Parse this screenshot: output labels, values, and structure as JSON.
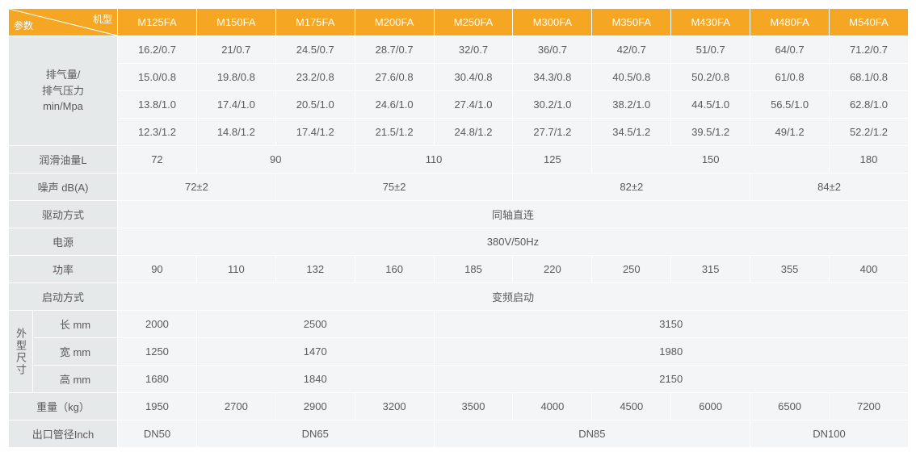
{
  "colors": {
    "header_bg": "#f5a623",
    "header_text": "#ffffff",
    "label_bg": "#e6e9ea",
    "value_bg": "#f4f5f6",
    "border": "#ffffff",
    "text": "#5a5a5a"
  },
  "header": {
    "param_label": "参数",
    "model_label": "机型",
    "models": [
      "M125FA",
      "M150FA",
      "M175FA",
      "M200FA",
      "M250FA",
      "M300FA",
      "M350FA",
      "M430FA",
      "M480FA",
      "M540FA"
    ]
  },
  "rows": {
    "exhaust_label": "排气量/\n排气压力\nmin/Mpa",
    "exhaust": [
      [
        "16.2/0.7",
        "21/0.7",
        "24.5/0.7",
        "28.7/0.7",
        "32/0.7",
        "36/0.7",
        "42/0.7",
        "51/0.7",
        "64/0.7",
        "71.2/0.7"
      ],
      [
        "15.0/0.8",
        "19.8/0.8",
        "23.2/0.8",
        "27.6/0.8",
        "30.4/0.8",
        "34.3/0.8",
        "40.5/0.8",
        "50.2/0.8",
        "61/0.8",
        "68.1/0.8"
      ],
      [
        "13.8/1.0",
        "17.4/1.0",
        "20.5/1.0",
        "24.6/1.0",
        "27.4/1.0",
        "30.2/1.0",
        "38.2/1.0",
        "44.5/1.0",
        "56.5/1.0",
        "62.8/1.0"
      ],
      [
        "12.3/1.2",
        "14.8/1.2",
        "17.4/1.2",
        "21.5/1.2",
        "24.8/1.2",
        "27.7/1.2",
        "34.5/1.2",
        "39.5/1.2",
        "49/1.2",
        "52.2/1.2"
      ]
    ],
    "oil_label": "润滑油量L",
    "oil_spans": [
      {
        "v": "72",
        "span": 1
      },
      {
        "v": "90",
        "span": 2
      },
      {
        "v": "110",
        "span": 2
      },
      {
        "v": "125",
        "span": 1
      },
      {
        "v": "150",
        "span": 3
      },
      {
        "v": "180",
        "span": 1
      }
    ],
    "noise_label": "噪声 dB(A)",
    "noise_spans": [
      {
        "v": "72±2",
        "span": 2
      },
      {
        "v": "75±2",
        "span": 3
      },
      {
        "v": "82±2",
        "span": 3
      },
      {
        "v": "84±2",
        "span": 2
      }
    ],
    "drive_label": "驱动方式",
    "drive_value": "同轴直连",
    "power_src_label": "电源",
    "power_src_value": "380V/50Hz",
    "power_label": "功率",
    "power": [
      "90",
      "110",
      "132",
      "160",
      "185",
      "220",
      "250",
      "315",
      "355",
      "400"
    ],
    "start_label": "启动方式",
    "start_value": "变频启动",
    "size_group_label": "外型尺寸",
    "size_len_label": "长 mm",
    "size_len_spans": [
      {
        "v": "2000",
        "span": 1
      },
      {
        "v": "2500",
        "span": 3
      },
      {
        "v": "3150",
        "span": 6
      }
    ],
    "size_wid_label": "宽 mm",
    "size_wid_spans": [
      {
        "v": "1250",
        "span": 1
      },
      {
        "v": "1470",
        "span": 3
      },
      {
        "v": "1980",
        "span": 6
      }
    ],
    "size_hgt_label": "高 mm",
    "size_hgt_spans": [
      {
        "v": "1680",
        "span": 1
      },
      {
        "v": "1840",
        "span": 3
      },
      {
        "v": "2150",
        "span": 6
      }
    ],
    "weight_label": "重量（kg）",
    "weight": [
      "1950",
      "2700",
      "2900",
      "3200",
      "3500",
      "4000",
      "4500",
      "6000",
      "6500",
      "7200"
    ],
    "outlet_label": "出口管径Inch",
    "outlet_spans": [
      {
        "v": "DN50",
        "span": 1
      },
      {
        "v": "DN65",
        "span": 3
      },
      {
        "v": "DN85",
        "span": 4
      },
      {
        "v": "DN100",
        "span": 2
      }
    ]
  }
}
